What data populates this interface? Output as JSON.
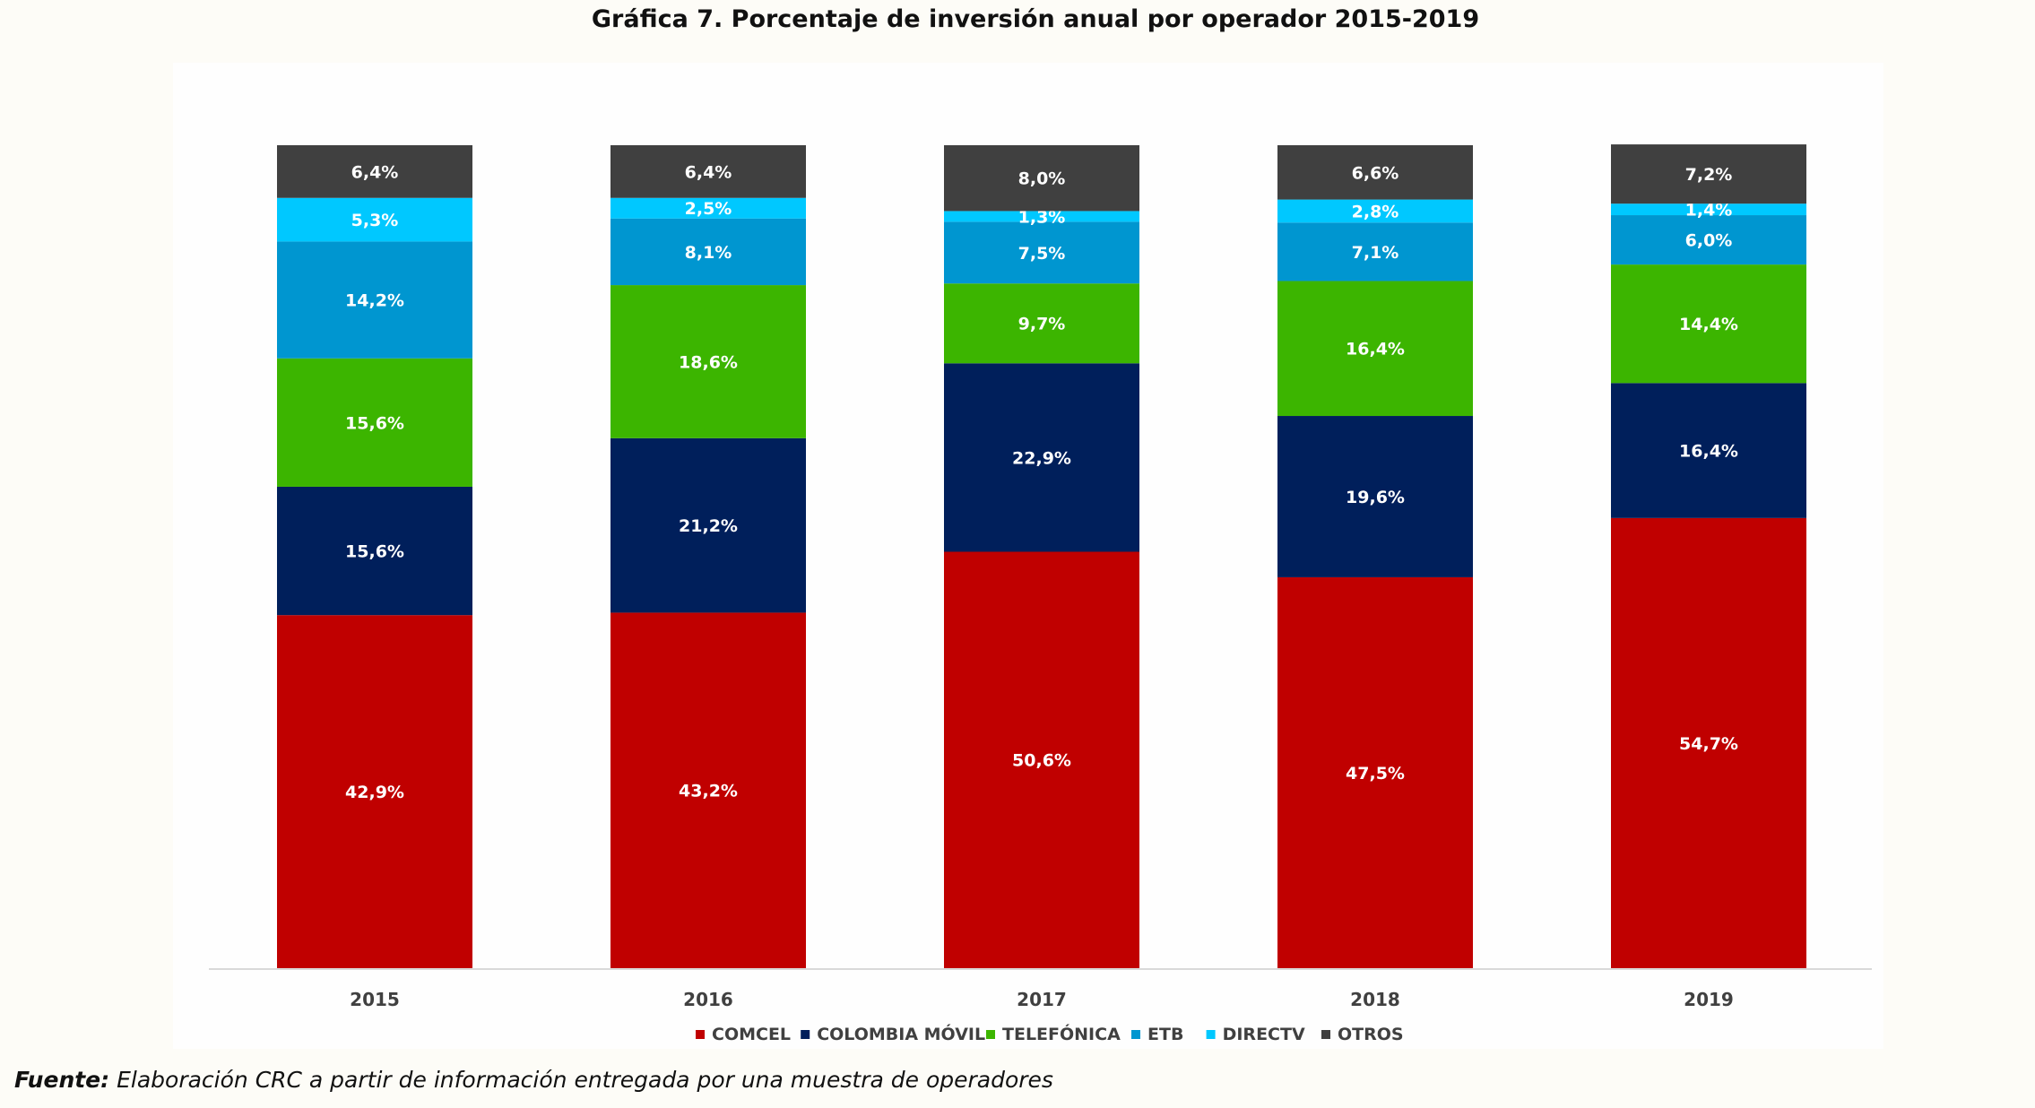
{
  "title": "Gráfica 7. Porcentaje de inversión anual por operador 2015-2019",
  "source": {
    "label": "Fuente:",
    "text": " Elaboración CRC a partir de información entregada por una muestra de operadores"
  },
  "chart_data": {
    "type": "bar",
    "stacked": true,
    "categories": [
      "2015",
      "2016",
      "2017",
      "2018",
      "2019"
    ],
    "series": [
      {
        "name": "COMCEL",
        "color": "#c00000",
        "label_color": "#ffffff",
        "values": [
          42.9,
          43.2,
          50.6,
          47.5,
          54.7
        ],
        "labels": [
          "42,9%",
          "43,2%",
          "50,6%",
          "47,5%",
          "54,7%"
        ]
      },
      {
        "name": "COLOMBIA MÓVIL",
        "color": "#001f5b",
        "label_color": "#ffffff",
        "values": [
          15.6,
          21.2,
          22.9,
          19.6,
          16.4
        ],
        "labels": [
          "15,6%",
          "21,2%",
          "22,9%",
          "19,6%",
          "16,4%"
        ]
      },
      {
        "name": "TELEFÓNICA",
        "color": "#3cb500",
        "label_color": "#ffffff",
        "values": [
          15.6,
          18.6,
          9.7,
          16.4,
          14.4
        ],
        "labels": [
          "15,6%",
          "18,6%",
          "9,7%",
          "16,4%",
          "14,4%"
        ]
      },
      {
        "name": "ETB",
        "color": "#0096d0",
        "label_color": "#ffffff",
        "values": [
          14.2,
          8.1,
          7.5,
          7.1,
          6.0
        ],
        "labels": [
          "14,2%",
          "8,1%",
          "7,5%",
          "7,1%",
          "6,0%"
        ]
      },
      {
        "name": "DIRECTV",
        "color": "#00c8ff",
        "label_color": "#ffffff",
        "values": [
          5.3,
          2.5,
          1.3,
          2.8,
          1.4
        ],
        "labels": [
          "5,3%",
          "2,5%",
          "1,3%",
          "2,8%",
          "1,4%"
        ]
      },
      {
        "name": "OTROS",
        "color": "#404040",
        "label_color": "#ffffff",
        "values": [
          6.4,
          6.4,
          8.0,
          6.6,
          7.2
        ],
        "labels": [
          "6,4%",
          "6,4%",
          "8,0%",
          "6,6%",
          "7,2%"
        ]
      }
    ],
    "ylim": [
      0,
      100
    ],
    "grid": false,
    "legend": "bottom",
    "xlabel": "",
    "ylabel": ""
  }
}
